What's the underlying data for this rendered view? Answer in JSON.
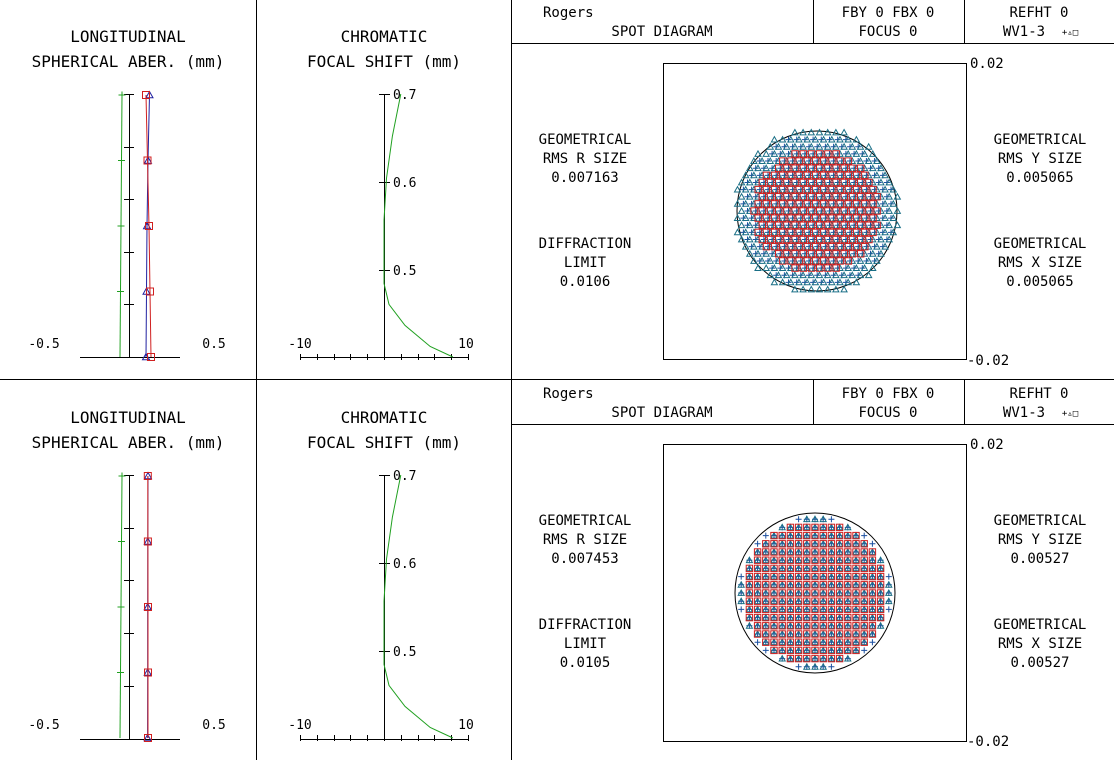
{
  "colors": {
    "longitudinal_short": "#2020a0",
    "longitudinal_mid": "#20a020",
    "longitudinal_long": "#d02020",
    "chromatic": "#20a020",
    "spot_triangle": "#1a6f86",
    "spot_plus": "#1a4fa0",
    "spot_square": "#d02020",
    "frame": "#000000"
  },
  "rows": [
    {
      "spherical": {
        "title_line1": "LONGITUDINAL",
        "title_line2": "SPHERICAL ABER. (mm)",
        "x_min_label": "-0.5",
        "x_max_label": "0.5"
      },
      "chromatic": {
        "title_line1": "CHROMATIC",
        "title_line2": "FOCAL SHIFT (mm)",
        "x_min_label": "-10",
        "x_max_label": "10",
        "y_labels": [
          "0.7",
          "0.6",
          "0.5"
        ]
      },
      "spot": {
        "name": "Rogers",
        "diagram_label": "SPOT DIAGRAM",
        "fby_fbx": "FBY 0 FBX 0",
        "focus": "FOCUS 0",
        "refht": "REFHT 0",
        "wavelengths": "WV1-3",
        "wavelength_symbols": "+▵□",
        "scale_top": "0.02",
        "scale_bottom": "-0.02",
        "rms_r": {
          "line1": "GEOMETRICAL",
          "line2": "RMS R SIZE",
          "value": "0.007163"
        },
        "diffraction": {
          "line1": "DIFFRACTION",
          "line2": "LIMIT",
          "value": "0.0106"
        },
        "rms_y": {
          "line1": "GEOMETRICAL",
          "line2": "RMS Y SIZE",
          "value": "0.005065"
        },
        "rms_x": {
          "line1": "GEOMETRICAL",
          "line2": "RMS X SIZE",
          "value": "0.005065"
        }
      }
    },
    {
      "spherical": {
        "title_line1": "LONGITUDINAL",
        "title_line2": "SPHERICAL ABER. (mm)",
        "x_min_label": "-0.5",
        "x_max_label": "0.5"
      },
      "chromatic": {
        "title_line1": "CHROMATIC",
        "title_line2": "FOCAL SHIFT (mm)",
        "x_min_label": "-10",
        "x_max_label": "10",
        "y_labels": [
          "0.7",
          "0.6",
          "0.5"
        ]
      },
      "spot": {
        "name": "Rogers",
        "diagram_label": "SPOT DIAGRAM",
        "fby_fbx": "FBY 0 FBX 0",
        "focus": "FOCUS 0",
        "refht": "REFHT 0",
        "wavelengths": "WV1-3",
        "wavelength_symbols": "+▵□",
        "scale_top": "0.02",
        "scale_bottom": "-0.02",
        "rms_r": {
          "line1": "GEOMETRICAL",
          "line2": "RMS R SIZE",
          "value": "0.007453"
        },
        "diffraction": {
          "line1": "DIFFRACTION",
          "line2": "LIMIT",
          "value": "0.0105"
        },
        "rms_y": {
          "line1": "GEOMETRICAL",
          "line2": "RMS Y SIZE",
          "value": "0.00527"
        },
        "rms_x": {
          "line1": "GEOMETRICAL",
          "line2": "RMS X SIZE",
          "value": "0.00527"
        }
      }
    }
  ],
  "chart_data": [
    {
      "type": "line",
      "panel": "row1-longitudinal-spherical-aberration",
      "title": "LONGITUDINAL SPHERICAL ABER. (mm)",
      "xlim": [
        -0.5,
        0.5
      ],
      "ylim": [
        0,
        1
      ],
      "series": [
        {
          "marker": "triangle",
          "x": [
            0.195,
            0.18,
            0.17,
            0.165,
            0.16
          ],
          "y": [
            1.0,
            0.75,
            0.5,
            0.25,
            0.0
          ]
        },
        {
          "marker": "plus",
          "x": [
            -0.08,
            -0.085,
            -0.09,
            -0.095,
            -0.1
          ],
          "y": [
            1.0,
            0.75,
            0.5,
            0.25,
            0.0
          ]
        },
        {
          "marker": "square",
          "x": [
            0.16,
            0.175,
            0.19,
            0.2,
            0.21
          ],
          "y": [
            1.0,
            0.75,
            0.5,
            0.25,
            0.0
          ]
        }
      ]
    },
    {
      "type": "line",
      "panel": "row1-chromatic-focal-shift",
      "title": "CHROMATIC FOCAL SHIFT (mm)",
      "xlim": [
        -10,
        10
      ],
      "ylim": [
        0.45,
        0.7
      ],
      "series": [
        {
          "x": [
            2.0,
            1.0,
            0.3,
            0.0,
            0.0,
            0.6,
            2.5,
            5.5,
            8.2
          ],
          "y": [
            0.7,
            0.66,
            0.62,
            0.58,
            0.52,
            0.5,
            0.48,
            0.46,
            0.45
          ]
        }
      ]
    },
    {
      "type": "scatter",
      "panel": "row1-spot-diagram",
      "title": "SPOT DIAGRAM",
      "xlim": [
        -0.02,
        0.02
      ],
      "ylim": [
        -0.02,
        0.02
      ],
      "airy_radius": 0.0106,
      "series": [
        {
          "marker": "plus",
          "pattern": "hex-disk",
          "radius": 0.0105,
          "rms": 0.007163
        },
        {
          "marker": "triangle",
          "pattern": "hex-disk",
          "radius": 0.0113,
          "rms": 0.007163
        },
        {
          "marker": "square",
          "pattern": "hex-disk",
          "radius": 0.0085,
          "rms": 0.007163
        }
      ]
    },
    {
      "type": "line",
      "panel": "row2-longitudinal-spherical-aberration",
      "title": "LONGITUDINAL SPHERICAL ABER. (mm)",
      "xlim": [
        -0.5,
        0.5
      ],
      "ylim": [
        0,
        1
      ],
      "series": [
        {
          "marker": "triangle",
          "x": [
            0.18,
            0.178,
            0.177,
            0.177,
            0.176
          ],
          "y": [
            1.0,
            0.75,
            0.5,
            0.25,
            0.0
          ]
        },
        {
          "marker": "plus",
          "x": [
            -0.08,
            -0.085,
            -0.09,
            -0.095,
            -0.1
          ],
          "y": [
            1.0,
            0.75,
            0.5,
            0.25,
            0.0
          ]
        },
        {
          "marker": "square",
          "x": [
            0.178,
            0.179,
            0.18,
            0.18,
            0.18
          ],
          "y": [
            1.0,
            0.75,
            0.5,
            0.25,
            0.0
          ]
        }
      ]
    },
    {
      "type": "line",
      "panel": "row2-chromatic-focal-shift",
      "title": "CHROMATIC FOCAL SHIFT (mm)",
      "xlim": [
        -10,
        10
      ],
      "ylim": [
        0.45,
        0.7
      ],
      "series": [
        {
          "x": [
            2.0,
            1.0,
            0.3,
            0.0,
            0.0,
            0.6,
            2.5,
            5.5,
            8.2
          ],
          "y": [
            0.7,
            0.66,
            0.62,
            0.58,
            0.52,
            0.5,
            0.48,
            0.46,
            0.45
          ]
        }
      ]
    },
    {
      "type": "scatter",
      "panel": "row2-spot-diagram",
      "title": "SPOT DIAGRAM",
      "xlim": [
        -0.02,
        0.02
      ],
      "ylim": [
        -0.02,
        0.02
      ],
      "airy_radius": 0.0105,
      "series": [
        {
          "marker": "plus",
          "pattern": "grid-disk",
          "radius": 0.0103,
          "rms": 0.007453
        },
        {
          "marker": "triangle",
          "pattern": "grid-disk",
          "radius": 0.0101,
          "rms": 0.007453
        },
        {
          "marker": "square",
          "pattern": "grid-disk",
          "radius": 0.0099,
          "rms": 0.007453
        }
      ]
    }
  ]
}
